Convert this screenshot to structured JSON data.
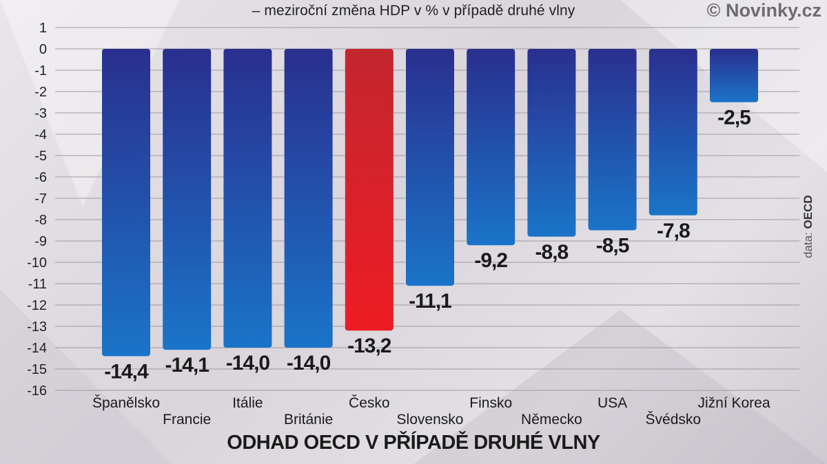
{
  "header": {
    "subtitle": "– meziroční změna HDP v % v případě druhé vlny",
    "copyright": "© Novinky.cz",
    "source_prefix": "data:",
    "source_name": "OECD"
  },
  "chart_data": {
    "type": "bar",
    "title": "ODHAD OECD V PŘÍPADĚ DRUHÉ VLNY",
    "subtitle": "– meziroční změna HDP v % v případě druhé vlny",
    "categories": [
      "Španělsko",
      "Francie",
      "Itálie",
      "Británie",
      "Česko",
      "Slovensko",
      "Finsko",
      "Německo",
      "USA",
      "Švédsko",
      "Jižní Korea"
    ],
    "values": [
      -14.4,
      -14.1,
      -14.0,
      -14.0,
      -13.2,
      -11.1,
      -9.2,
      -8.8,
      -8.5,
      -7.8,
      -2.5
    ],
    "value_labels": [
      "-14,4",
      "-14,1",
      "-14,0",
      "-14,0",
      "-13,2",
      "-11,1",
      "-9,2",
      "-8,8",
      "-8,5",
      "-7,8",
      "-2,5"
    ],
    "highlight_category": "Česko",
    "yticks": [
      1,
      0,
      -1,
      -2,
      -3,
      -4,
      -5,
      -6,
      -7,
      -8,
      -9,
      -10,
      -11,
      -12,
      -13,
      -14,
      -15,
      -16
    ],
    "ylim": [
      -16,
      1
    ],
    "grid": true,
    "legend": "none",
    "colors": {
      "bar_top": "#2a2f8e",
      "bar_bottom": "#1a74c9",
      "highlight_top": "#c3262e",
      "highlight_bottom": "#ee1c24"
    }
  }
}
